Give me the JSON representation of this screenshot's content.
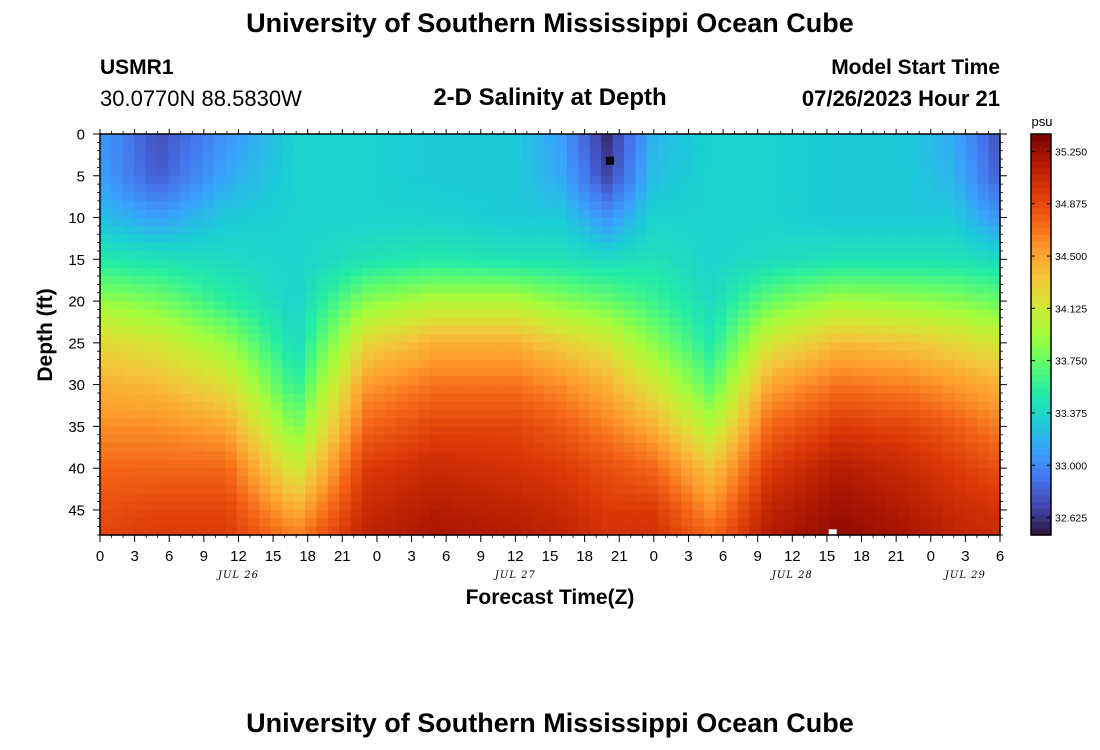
{
  "page": {
    "title": "University of Southern Mississippi Ocean Cube",
    "footer_title": "University of Southern Mississippi Ocean Cube"
  },
  "station": {
    "id": "USMR1",
    "coords": "30.0770N  88.5830W"
  },
  "plot": {
    "title": "2-D Salinity at Depth",
    "start_label": "Model Start Time",
    "start_value": "07/26/2023 Hour 21"
  },
  "chart_data": {
    "type": "heatmap",
    "title": "2-D Salinity at Depth",
    "xlabel": "Forecast Time(Z)",
    "ylabel": "Depth (ft)",
    "units": "psu",
    "x_range_hours_from_jul26_00z": [
      0,
      78
    ],
    "x_tick_hours": [
      0,
      3,
      6,
      9,
      12,
      15,
      18,
      21,
      24,
      27,
      30,
      33,
      36,
      39,
      42,
      45,
      48,
      51,
      54,
      57,
      60,
      63,
      66,
      69,
      72,
      75,
      78
    ],
    "x_tick_labels": [
      "0",
      "3",
      "6",
      "9",
      "12",
      "15",
      "18",
      "21",
      "0",
      "3",
      "6",
      "9",
      "12",
      "15",
      "18",
      "21",
      "0",
      "3",
      "6",
      "9",
      "12",
      "15",
      "18",
      "21",
      "0",
      "3",
      "6"
    ],
    "date_labels": [
      {
        "label": "JUL 26",
        "hour": 12
      },
      {
        "label": "JUL 27",
        "hour": 36
      },
      {
        "label": "JUL 28",
        "hour": 60
      },
      {
        "label": "JUL 29",
        "hour": 75
      }
    ],
    "ylim": [
      0,
      48
    ],
    "y_ticks": [
      0,
      5,
      10,
      15,
      20,
      25,
      30,
      35,
      40,
      45
    ],
    "colorbar": {
      "min": 32.5,
      "max": 35.375,
      "tick_values": [
        35.25,
        34.875,
        34.5,
        34.125,
        33.75,
        33.375,
        33.0,
        32.625
      ],
      "tick_labels": [
        "35.250",
        "34.875",
        "34.500",
        "34.125",
        "33.750",
        "33.375",
        "33.000",
        "32.625"
      ],
      "colors": [
        "#30123b",
        "#4145ab",
        "#4675ed",
        "#39a2fc",
        "#1bcfd4",
        "#24eca6",
        "#61fc6c",
        "#a4fc3b",
        "#d1e834",
        "#f3c63a",
        "#fe9b2d",
        "#f36315",
        "#d93806",
        "#b11901",
        "#7a0403"
      ]
    },
    "salinity_field": {
      "depth_ft": [
        0,
        5,
        10,
        15,
        20,
        25,
        30,
        35,
        40,
        45,
        48
      ],
      "profiles": [
        {
          "hour": 0,
          "values": [
            33.1,
            33.1,
            33.25,
            33.5,
            33.9,
            34.25,
            34.45,
            34.6,
            34.75,
            34.85,
            34.9
          ]
        },
        {
          "hour": 5,
          "values": [
            32.75,
            32.8,
            33.1,
            33.45,
            33.8,
            34.15,
            34.4,
            34.6,
            34.75,
            34.9,
            34.95
          ]
        },
        {
          "hour": 11,
          "values": [
            33.05,
            33.15,
            33.3,
            33.4,
            33.55,
            33.9,
            34.2,
            34.5,
            34.75,
            34.9,
            34.95
          ]
        },
        {
          "hour": 17,
          "values": [
            33.35,
            33.35,
            33.35,
            33.35,
            33.35,
            33.4,
            33.55,
            33.8,
            34.1,
            34.45,
            34.65
          ]
        },
        {
          "hour": 23,
          "values": [
            33.35,
            33.35,
            33.35,
            33.45,
            33.85,
            34.25,
            34.55,
            34.75,
            34.95,
            35.05,
            35.1
          ]
        },
        {
          "hour": 29,
          "values": [
            33.3,
            33.3,
            33.35,
            33.5,
            34.0,
            34.45,
            34.7,
            34.9,
            35.05,
            35.15,
            35.2
          ]
        },
        {
          "hour": 36,
          "values": [
            33.3,
            33.3,
            33.3,
            33.45,
            34.0,
            34.45,
            34.7,
            34.9,
            35.0,
            35.1,
            35.15
          ]
        },
        {
          "hour": 40,
          "values": [
            33.1,
            33.15,
            33.3,
            33.45,
            33.85,
            34.3,
            34.6,
            34.8,
            34.95,
            35.05,
            35.1
          ]
        },
        {
          "hour": 44,
          "values": [
            32.6,
            32.7,
            33.05,
            33.4,
            33.75,
            34.15,
            34.45,
            34.65,
            34.85,
            34.95,
            35.0
          ]
        },
        {
          "hour": 48,
          "values": [
            33.2,
            33.25,
            33.35,
            33.45,
            33.6,
            33.85,
            34.15,
            34.45,
            34.75,
            34.95,
            35.0
          ]
        },
        {
          "hour": 53,
          "values": [
            33.35,
            33.35,
            33.35,
            33.35,
            33.4,
            33.5,
            33.7,
            34.0,
            34.35,
            34.6,
            34.75
          ]
        },
        {
          "hour": 58,
          "values": [
            33.35,
            33.35,
            33.35,
            33.4,
            33.75,
            34.15,
            34.5,
            34.75,
            34.95,
            35.1,
            35.15
          ]
        },
        {
          "hour": 64,
          "values": [
            33.3,
            33.3,
            33.3,
            33.45,
            33.95,
            34.4,
            34.7,
            34.95,
            35.15,
            35.25,
            35.3
          ]
        },
        {
          "hour": 70,
          "values": [
            33.3,
            33.3,
            33.3,
            33.45,
            33.9,
            34.35,
            34.65,
            34.9,
            35.05,
            35.15,
            35.2
          ]
        },
        {
          "hour": 74,
          "values": [
            33.15,
            33.2,
            33.3,
            33.45,
            33.85,
            34.25,
            34.55,
            34.8,
            34.95,
            35.05,
            35.1
          ]
        },
        {
          "hour": 78,
          "values": [
            32.75,
            32.8,
            33.05,
            33.4,
            33.75,
            34.15,
            34.45,
            34.65,
            34.85,
            35.0,
            35.05
          ]
        }
      ]
    },
    "markers": [
      {
        "name": "min-marker",
        "hour": 44.2,
        "depth_ft": 3.2,
        "color": "#000000"
      },
      {
        "name": "max-marker",
        "hour": 63.5,
        "depth_ft": 47.8,
        "color": "#ffffff"
      }
    ]
  }
}
